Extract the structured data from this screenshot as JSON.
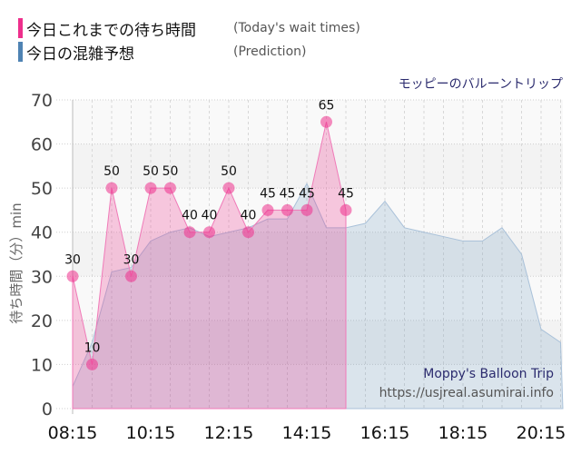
{
  "legend": {
    "today": {
      "label_jp": "今日これまでの待ち時間",
      "label_en": "(Today's wait times)",
      "color": "#ee2f8c"
    },
    "prediction": {
      "label_jp": "今日の混雑予想",
      "label_en": "(Prediction)",
      "color": "#4f83b3"
    }
  },
  "attraction_name": "モッピーのバルーントリップ",
  "watermark": {
    "title": "Moppy's Balloon Trip",
    "url": "https://usjreal.asumirai.info"
  },
  "chart_data": {
    "type": "area",
    "title": "モッピーのバルーントリップ",
    "ylabel": "待ち時間（分）min",
    "xlabel": "",
    "ylim": [
      0,
      70
    ],
    "yticks": [
      0,
      10,
      20,
      30,
      40,
      50,
      60,
      70
    ],
    "xticks": [
      "08:15",
      "10:15",
      "12:15",
      "14:15",
      "16:15",
      "18:15",
      "20:15"
    ],
    "grid": true,
    "legend_position": "top-left",
    "series": [
      {
        "name": "今日これまでの待ち時間 (Today's wait times)",
        "color": "#ee2f8c",
        "x": [
          "08:15",
          "08:45",
          "09:15",
          "09:45",
          "10:15",
          "10:45",
          "11:15",
          "11:45",
          "12:15",
          "12:45",
          "13:15",
          "13:45",
          "14:15",
          "14:45",
          "15:15"
        ],
        "values": [
          30,
          10,
          50,
          30,
          50,
          50,
          40,
          40,
          50,
          40,
          45,
          45,
          45,
          65,
          45
        ]
      },
      {
        "name": "今日の混雑予想 (Prediction)",
        "color": "#4f83b3",
        "x": [
          "08:15",
          "08:45",
          "09:15",
          "09:45",
          "10:15",
          "10:45",
          "11:15",
          "11:45",
          "12:15",
          "12:45",
          "13:15",
          "13:45",
          "14:15",
          "14:45",
          "15:15",
          "15:45",
          "16:15",
          "16:45",
          "17:15",
          "17:45",
          "18:15",
          "18:45",
          "19:15",
          "19:45",
          "20:15",
          "20:45"
        ],
        "values": [
          5,
          15,
          31,
          32,
          38,
          40,
          41,
          39,
          40,
          41,
          43,
          43,
          51,
          41,
          41,
          42,
          47,
          41,
          40,
          39,
          38,
          38,
          41,
          35,
          18,
          15
        ]
      }
    ]
  }
}
